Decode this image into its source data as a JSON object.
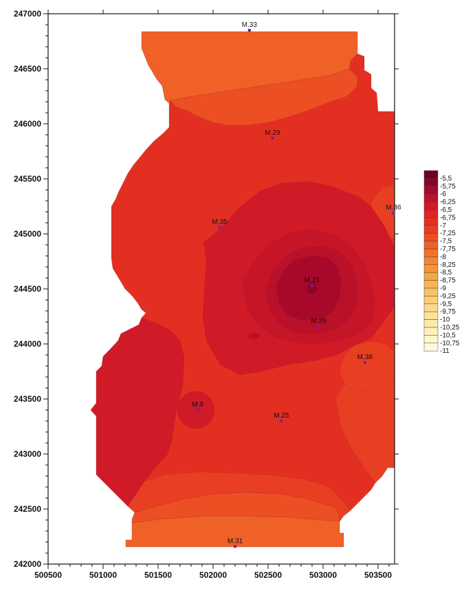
{
  "chart_data": {
    "type": "contour-map",
    "x_axis": {
      "range": [
        500500,
        503650
      ],
      "ticks": [
        500500,
        501000,
        501500,
        502000,
        502500,
        503000,
        503500
      ]
    },
    "y_axis": {
      "range": [
        242000,
        247000
      ],
      "ticks": [
        242000,
        242500,
        243000,
        243500,
        244000,
        244500,
        245000,
        245500,
        246000,
        246500,
        247000
      ]
    },
    "stations": [
      {
        "name": "M.33",
        "x": 502330,
        "y": 246850
      },
      {
        "name": "M.29",
        "x": 502540,
        "y": 245870
      },
      {
        "name": "M.36",
        "x": 503640,
        "y": 245190
      },
      {
        "name": "M.35",
        "x": 502060,
        "y": 245060
      },
      {
        "name": "M.21",
        "x": 502900,
        "y": 244530
      },
      {
        "name": "M.39",
        "x": 502960,
        "y": 244160
      },
      {
        "name": "M.38",
        "x": 503380,
        "y": 243830
      },
      {
        "name": "M.9",
        "x": 501860,
        "y": 243400
      },
      {
        "name": "M.25",
        "x": 502620,
        "y": 243300
      },
      {
        "name": "M.31",
        "x": 502200,
        "y": 242160
      }
    ],
    "legend": {
      "placement": "right",
      "entries": [
        {
          "label": "-5,5",
          "color": "#6e0022"
        },
        {
          "label": "-5,75",
          "color": "#8a0326"
        },
        {
          "label": "-6",
          "color": "#a50a2a"
        },
        {
          "label": "-6,25",
          "color": "#bf112a"
        },
        {
          "label": "-6,5",
          "color": "#d11a28"
        },
        {
          "label": "-6,75",
          "color": "#de2424"
        },
        {
          "label": "-7",
          "color": "#e32f22"
        },
        {
          "label": "-7,25",
          "color": "#e83f23"
        },
        {
          "label": "-7,5",
          "color": "#ec4f24"
        },
        {
          "label": "-7,75",
          "color": "#ef6127"
        },
        {
          "label": "-8",
          "color": "#f2722b"
        },
        {
          "label": "-8,25",
          "color": "#f5842f"
        },
        {
          "label": "-8,5",
          "color": "#f69538"
        },
        {
          "label": "-8,75",
          "color": "#f8a544"
        },
        {
          "label": "-9",
          "color": "#f9b552"
        },
        {
          "label": "-9,25",
          "color": "#fbc263"
        },
        {
          "label": "-9,5",
          "color": "#fcce75"
        },
        {
          "label": "-9,75",
          "color": "#fdd887"
        },
        {
          "label": "-10",
          "color": "#fde29a"
        },
        {
          "label": "-10,25",
          "color": "#feeaab"
        },
        {
          "label": "-10,5",
          "color": "#fef1bc"
        },
        {
          "label": "-10,75",
          "color": "#fff6cc"
        },
        {
          "label": "-11",
          "color": "#fffadb"
        }
      ]
    }
  }
}
